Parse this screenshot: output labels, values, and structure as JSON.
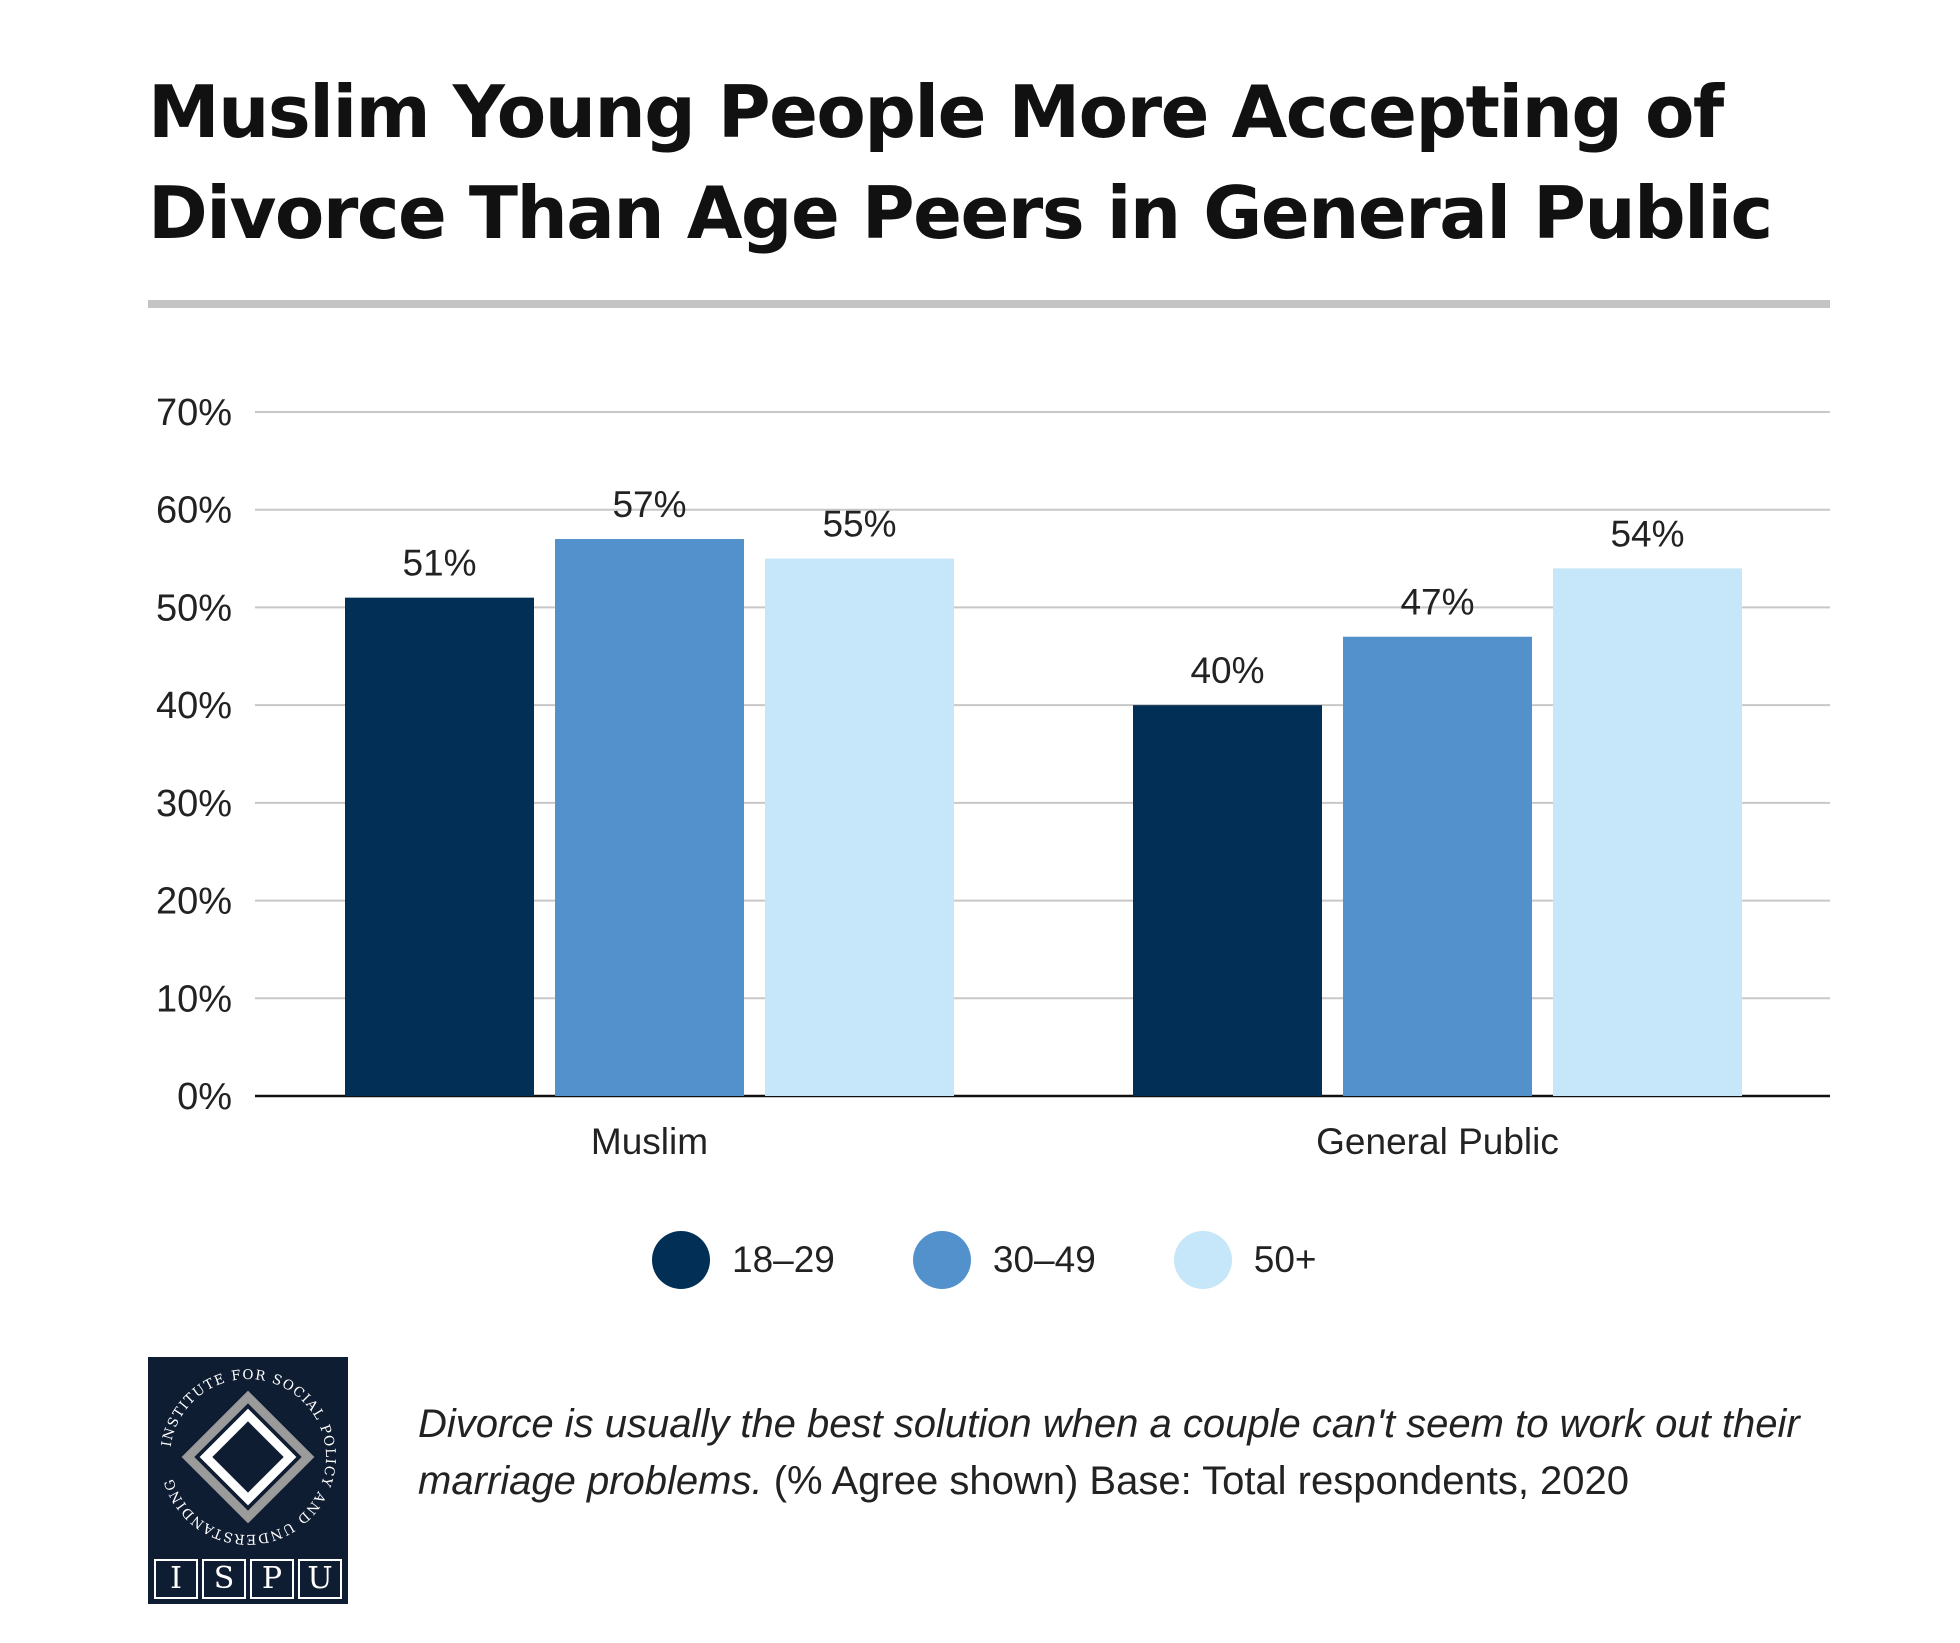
{
  "title": "Muslim Young People More Accepting of Divorce Than Age Peers in General Public",
  "colors": {
    "series_18_29": "#022f55",
    "series_30_49": "#5291cc",
    "series_50_plus": "#c5e7f9",
    "grid": "#c8c8c8",
    "axis": "#111111",
    "title_rule": "#c4c4c4"
  },
  "chart_data": {
    "type": "bar",
    "categories": [
      "Muslim",
      "General Public"
    ],
    "series": [
      {
        "name": "18–29",
        "values": [
          51,
          40
        ]
      },
      {
        "name": "30–49",
        "values": [
          57,
          47
        ]
      },
      {
        "name": "50+",
        "values": [
          55,
          54
        ]
      }
    ],
    "value_labels": [
      [
        "51%",
        "40%"
      ],
      [
        "57%",
        "47%"
      ],
      [
        "55%",
        "54%"
      ]
    ],
    "y_ticks": [
      {
        "value": 0,
        "label": "0%"
      },
      {
        "value": 10,
        "label": "10%"
      },
      {
        "value": 20,
        "label": "20%"
      },
      {
        "value": 30,
        "label": "30%"
      },
      {
        "value": 40,
        "label": "40%"
      },
      {
        "value": 50,
        "label": "50%"
      },
      {
        "value": 60,
        "label": "60%"
      },
      {
        "value": 70,
        "label": "70%"
      }
    ],
    "ylim": [
      0,
      70
    ],
    "unit": "%",
    "grid": true,
    "legend": "bottom-center",
    "title": "Muslim Young People More Accepting of Divorce Than Age Peers in General Public"
  },
  "legend": {
    "items": [
      {
        "label": "18–29"
      },
      {
        "label": "30–49"
      },
      {
        "label": "50+"
      }
    ]
  },
  "footnote": {
    "question": "Divorce is usually the best solution when a couple can't seem to work out their marriage problems.",
    "rest": " (% Agree shown) Base: Total respondents, 2020"
  },
  "logo": {
    "ring_text": "INSTITUTE FOR SOCIAL POLICY AND UNDERSTANDING",
    "letters": [
      "I",
      "S",
      "P",
      "U"
    ]
  }
}
